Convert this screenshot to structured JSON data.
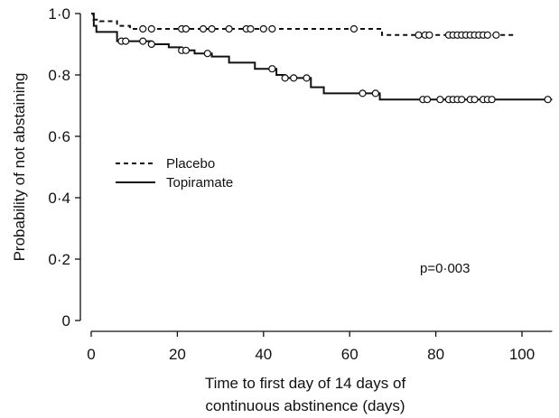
{
  "chart_data": {
    "type": "line",
    "title": "",
    "xlabel_lines": [
      "Time to first day of 14 days of",
      "continuous abstinence (days)"
    ],
    "ylabel": "Probability of not abstaining",
    "xlim": [
      0,
      107
    ],
    "ylim": [
      0,
      1.0
    ],
    "xticks": [
      0,
      20,
      40,
      60,
      80,
      100
    ],
    "xtick_labels": [
      "0",
      "20",
      "40",
      "60",
      "80",
      "100"
    ],
    "yticks": [
      0,
      0.2,
      0.4,
      0.6,
      0.8,
      1.0
    ],
    "ytick_labels": [
      "0",
      "0·2",
      "0·4",
      "0·6",
      "0·8",
      "1·0"
    ],
    "grid": false,
    "legend_position": "left-middle",
    "annotation": "p=0·003",
    "series": [
      {
        "name": "Placebo",
        "line_style": "dashed",
        "color": "#111111",
        "steps": [
          [
            0,
            1.0
          ],
          [
            0.5,
            0.98
          ],
          [
            2,
            0.975
          ],
          [
            6,
            0.96
          ],
          [
            9,
            0.95
          ],
          [
            67,
            0.95
          ],
          [
            67.5,
            0.93
          ],
          [
            98,
            0.93
          ]
        ],
        "censored": [
          12,
          14,
          21,
          22,
          26,
          28,
          32,
          36,
          37,
          40,
          42,
          61,
          76,
          77.5,
          78.5,
          83,
          84,
          85,
          86,
          87,
          88,
          89,
          90,
          91,
          92,
          94
        ]
      },
      {
        "name": "Topiramate",
        "line_style": "solid",
        "color": "#111111",
        "steps": [
          [
            0,
            1.0
          ],
          [
            0.6,
            0.96
          ],
          [
            1.2,
            0.94
          ],
          [
            6,
            0.91
          ],
          [
            14,
            0.9
          ],
          [
            18,
            0.89
          ],
          [
            21,
            0.88
          ],
          [
            24,
            0.87
          ],
          [
            28,
            0.86
          ],
          [
            32,
            0.84
          ],
          [
            38,
            0.82
          ],
          [
            43,
            0.8
          ],
          [
            45,
            0.79
          ],
          [
            51,
            0.76
          ],
          [
            54,
            0.74
          ],
          [
            67,
            0.72
          ],
          [
            107,
            0.72
          ]
        ],
        "censored": [
          7,
          8,
          12,
          14,
          21,
          22,
          27,
          42,
          45,
          47,
          50,
          63,
          66,
          77,
          78,
          81,
          83,
          84,
          85,
          86,
          88,
          89,
          91,
          92,
          93,
          106
        ]
      }
    ]
  }
}
